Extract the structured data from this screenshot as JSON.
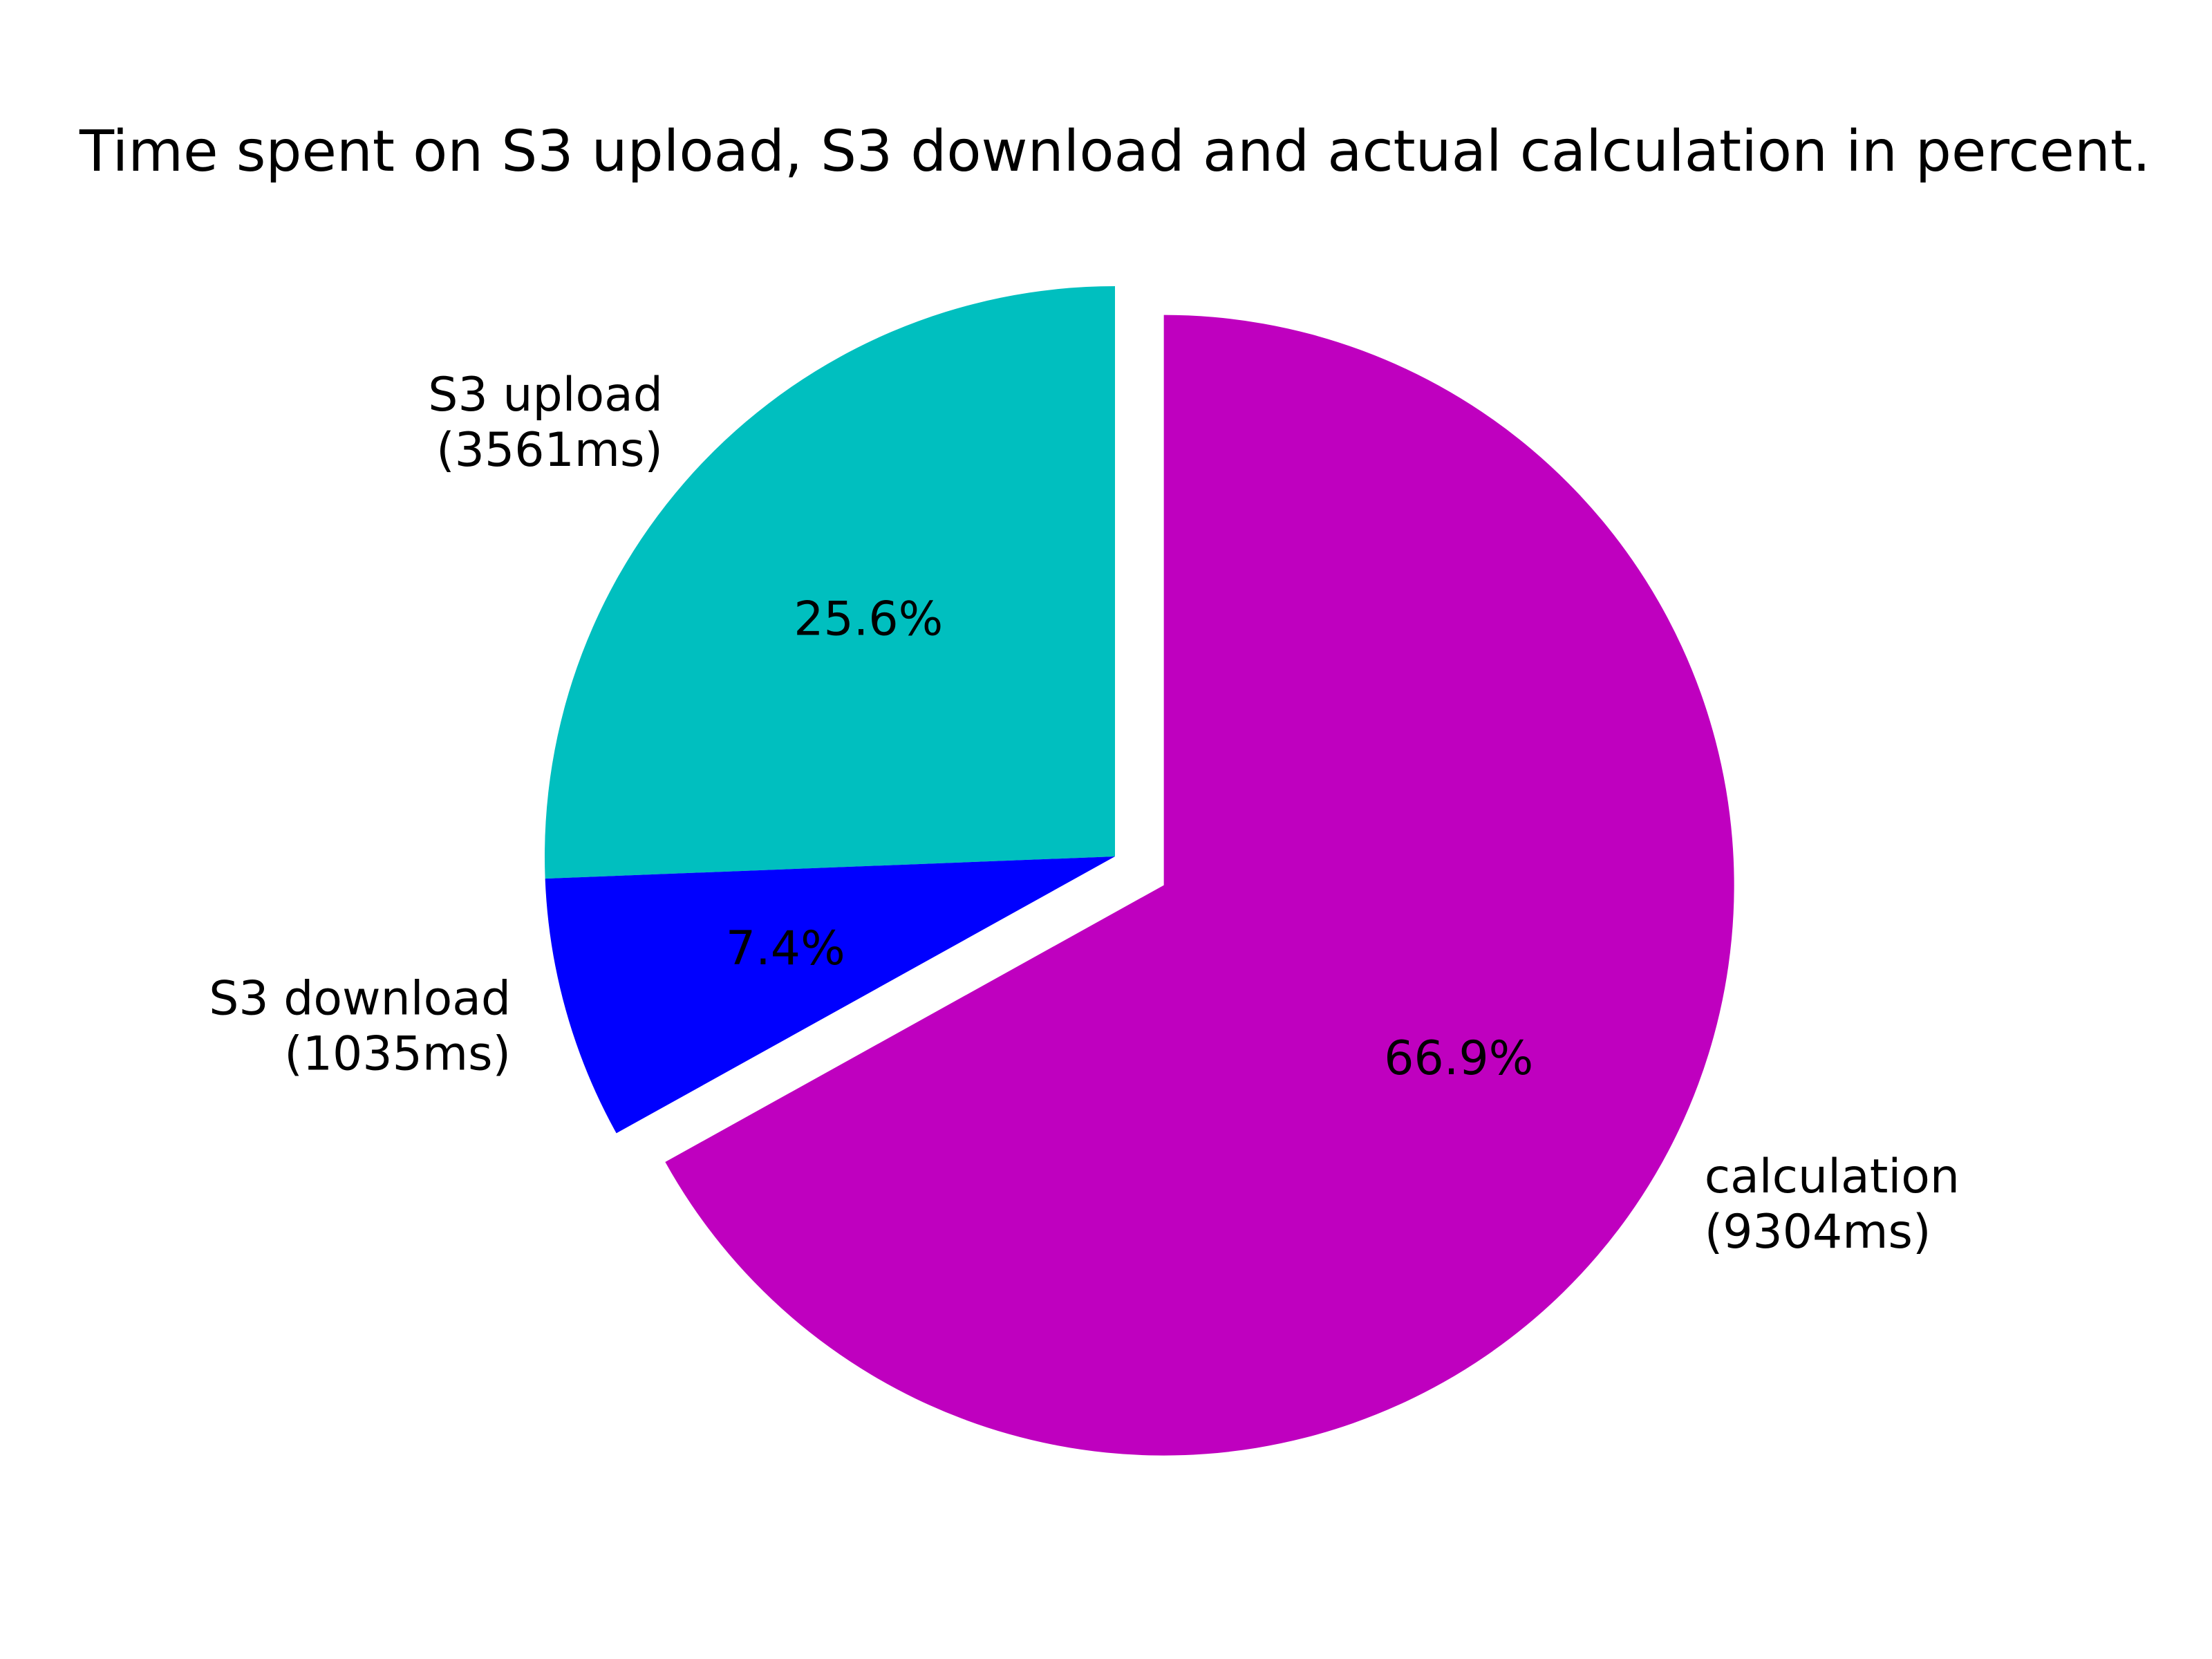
{
  "chart_data": {
    "type": "pie",
    "title": "Time spent on S3 upload, S3 download and actual calculation in percent.",
    "slices": [
      {
        "name": "S3 upload",
        "value_ms": 3561,
        "value_label": "(3561ms)",
        "percent": 25.6,
        "percent_label": "25.6%",
        "color": "#00bfbf",
        "exploded": false
      },
      {
        "name": "S3 download",
        "value_ms": 1035,
        "value_label": "(1035ms)",
        "percent": 7.4,
        "percent_label": "7.4%",
        "color": "#0000ff",
        "exploded": false
      },
      {
        "name": "calculation",
        "value_ms": 9304,
        "value_label": "(9304ms)",
        "percent": 66.9,
        "percent_label": "66.9%",
        "color": "#bf00bf",
        "exploded": true
      }
    ],
    "start_angle_deg": 90,
    "direction": "counterclockwise",
    "legend": false
  }
}
